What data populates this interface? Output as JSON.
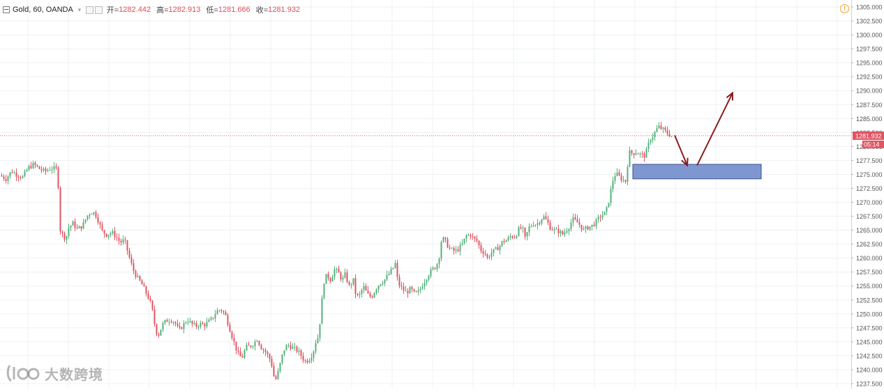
{
  "legend": {
    "symbol": "Gold, 60, OANDA",
    "open_label": "开=",
    "open_value": "1282.442",
    "high_label": "高=",
    "high_value": "1282.913",
    "low_label": "低=",
    "low_value": "1281.666",
    "close_label": "收=",
    "close_value": "1281.932"
  },
  "watermark": {
    "text": "大数跨境"
  },
  "colors": {
    "up": "#54b07a",
    "down": "#e05562",
    "price_line": "#e05562",
    "arrow": "#8b1a1a",
    "zone_fill": "#7f97d1",
    "zone_stroke": "#3a4f8c",
    "grid": "#eef0f3",
    "axis_text": "#555555"
  },
  "chart_data": {
    "type": "candlestick",
    "symbol": "Gold",
    "interval": "60",
    "source": "OANDA",
    "ylim": [
      1237.5,
      1305.0
    ],
    "y_ticks": [
      "1305.000",
      "1302.500",
      "1300.000",
      "1297.500",
      "1295.000",
      "1292.500",
      "1290.000",
      "1287.500",
      "1285.000",
      "1282.500",
      "1280.000",
      "1277.500",
      "1275.000",
      "1272.500",
      "1270.000",
      "1267.500",
      "1265.000",
      "1262.500",
      "1260.000",
      "1257.500",
      "1255.000",
      "1252.500",
      "1250.000",
      "1247.500",
      "1245.000",
      "1242.500",
      "1240.000",
      "1237.500"
    ],
    "last_price": "1281.932",
    "countdown": "05:14",
    "grid": true,
    "close_path": [
      [
        0,
        1274.8
      ],
      [
        8,
        1274.2
      ],
      [
        16,
        1275.6
      ],
      [
        24,
        1274.9
      ],
      [
        32,
        1274.5
      ],
      [
        40,
        1276.2
      ],
      [
        48,
        1276.8
      ],
      [
        56,
        1276.0
      ],
      [
        64,
        1275.5
      ],
      [
        72,
        1276.1
      ],
      [
        80,
        1276.0
      ],
      [
        84,
        1272.0
      ],
      [
        86,
        1265.0
      ],
      [
        90,
        1264.0
      ],
      [
        94,
        1263.5
      ],
      [
        98,
        1265.5
      ],
      [
        104,
        1266.2
      ],
      [
        110,
        1265.2
      ],
      [
        118,
        1265.8
      ],
      [
        124,
        1267.5
      ],
      [
        130,
        1268.3
      ],
      [
        136,
        1268.0
      ],
      [
        140,
        1266.8
      ],
      [
        146,
        1264.8
      ],
      [
        152,
        1264.2
      ],
      [
        160,
        1264.6
      ],
      [
        166,
        1263.8
      ],
      [
        172,
        1262.8
      ],
      [
        178,
        1263.2
      ],
      [
        184,
        1260.5
      ],
      [
        190,
        1258.0
      ],
      [
        196,
        1256.5
      ],
      [
        202,
        1255.5
      ],
      [
        208,
        1254.0
      ],
      [
        214,
        1252.5
      ],
      [
        218,
        1250.5
      ],
      [
        222,
        1247.5
      ],
      [
        226,
        1246.0
      ],
      [
        232,
        1248.0
      ],
      [
        238,
        1248.8
      ],
      [
        244,
        1249.0
      ],
      [
        250,
        1248.5
      ],
      [
        256,
        1247.0
      ],
      [
        262,
        1248.0
      ],
      [
        268,
        1249.0
      ],
      [
        274,
        1248.2
      ],
      [
        280,
        1247.8
      ],
      [
        286,
        1248.2
      ],
      [
        292,
        1248.0
      ],
      [
        298,
        1248.5
      ],
      [
        304,
        1249.2
      ],
      [
        310,
        1250.5
      ],
      [
        316,
        1250.8
      ],
      [
        322,
        1250.0
      ],
      [
        326,
        1248.5
      ],
      [
        330,
        1246.8
      ],
      [
        336,
        1244.5
      ],
      [
        340,
        1243.0
      ],
      [
        346,
        1242.0
      ],
      [
        352,
        1244.0
      ],
      [
        358,
        1244.2
      ],
      [
        364,
        1244.8
      ],
      [
        368,
        1245.5
      ],
      [
        374,
        1244.0
      ],
      [
        380,
        1243.2
      ],
      [
        386,
        1242.0
      ],
      [
        390,
        1240.5
      ],
      [
        393,
        1238.0
      ],
      [
        396,
        1238.5
      ],
      [
        400,
        1240.5
      ],
      [
        406,
        1243.5
      ],
      [
        412,
        1244.5
      ],
      [
        418,
        1244.0
      ],
      [
        424,
        1243.6
      ],
      [
        430,
        1242.8
      ],
      [
        436,
        1241.5
      ],
      [
        442,
        1241.8
      ],
      [
        448,
        1243.0
      ],
      [
        452,
        1245.0
      ],
      [
        456,
        1246.0
      ],
      [
        460,
        1251.0
      ],
      [
        463,
        1255.5
      ],
      [
        468,
        1257.0
      ],
      [
        474,
        1256.0
      ],
      [
        478,
        1258.0
      ],
      [
        484,
        1257.5
      ],
      [
        490,
        1256.0
      ],
      [
        494,
        1257.0
      ],
      [
        500,
        1255.0
      ],
      [
        506,
        1256.0
      ],
      [
        510,
        1253.0
      ],
      [
        516,
        1253.5
      ],
      [
        520,
        1255.0
      ],
      [
        526,
        1253.5
      ],
      [
        532,
        1253.0
      ],
      [
        538,
        1254.5
      ],
      [
        544,
        1255.5
      ],
      [
        550,
        1256.0
      ],
      [
        556,
        1257.0
      ],
      [
        562,
        1258.0
      ],
      [
        566,
        1259.0
      ],
      [
        570,
        1255.5
      ],
      [
        576,
        1254.5
      ],
      [
        582,
        1253.8
      ],
      [
        588,
        1254.5
      ],
      [
        594,
        1253.5
      ],
      [
        600,
        1254.0
      ],
      [
        606,
        1255.5
      ],
      [
        612,
        1256.8
      ],
      [
        618,
        1257.8
      ],
      [
        624,
        1258.5
      ],
      [
        628,
        1259.5
      ],
      [
        632,
        1263.0
      ],
      [
        636,
        1263.5
      ],
      [
        642,
        1262.0
      ],
      [
        646,
        1261.5
      ],
      [
        652,
        1261.2
      ],
      [
        658,
        1261.8
      ],
      [
        662,
        1262.5
      ],
      [
        668,
        1264.0
      ],
      [
        674,
        1264.2
      ],
      [
        678,
        1263.5
      ],
      [
        684,
        1263.0
      ],
      [
        688,
        1261.5
      ],
      [
        694,
        1261.0
      ],
      [
        698,
        1260.0
      ],
      [
        704,
        1261.0
      ],
      [
        710,
        1261.5
      ],
      [
        716,
        1262.2
      ],
      [
        720,
        1263.0
      ],
      [
        726,
        1263.2
      ],
      [
        732,
        1264.0
      ],
      [
        738,
        1263.8
      ],
      [
        742,
        1265.0
      ],
      [
        748,
        1265.5
      ],
      [
        752,
        1263.5
      ],
      [
        758,
        1265.5
      ],
      [
        764,
        1266.2
      ],
      [
        768,
        1266.0
      ],
      [
        774,
        1266.8
      ],
      [
        778,
        1267.5
      ],
      [
        784,
        1266.5
      ],
      [
        788,
        1265.5
      ],
      [
        794,
        1265.0
      ],
      [
        800,
        1264.8
      ],
      [
        806,
        1264.3
      ],
      [
        810,
        1264.8
      ],
      [
        816,
        1265.8
      ],
      [
        820,
        1267.0
      ],
      [
        826,
        1266.5
      ],
      [
        830,
        1266.0
      ],
      [
        836,
        1265.0
      ],
      [
        842,
        1265.5
      ],
      [
        848,
        1265.8
      ],
      [
        854,
        1266.5
      ],
      [
        860,
        1267.5
      ],
      [
        866,
        1268.0
      ],
      [
        870,
        1269.0
      ],
      [
        874,
        1271.5
      ],
      [
        878,
        1274.0
      ],
      [
        882,
        1275.2
      ],
      [
        888,
        1274.5
      ],
      [
        892,
        1274.0
      ],
      [
        896,
        1273.8
      ],
      [
        898,
        1274.5
      ],
      [
        900,
        1279.0
      ],
      [
        906,
        1278.8
      ],
      [
        912,
        1279.0
      ],
      [
        918,
        1278.5
      ],
      [
        924,
        1278.3
      ],
      [
        928,
        1280.0
      ],
      [
        932,
        1281.5
      ],
      [
        936,
        1282.0
      ],
      [
        940,
        1283.0
      ],
      [
        944,
        1283.5
      ],
      [
        950,
        1283.0
      ],
      [
        956,
        1282.4
      ],
      [
        962,
        1281.932
      ]
    ],
    "annotations": {
      "support_zone": {
        "price_top": 1276.8,
        "price_bottom": 1274.2
      },
      "arrow_down": {
        "from_price": 1282.0,
        "to_price": 1276.6
      },
      "arrow_up": {
        "from_price": 1276.6,
        "to_price": 1289.6
      }
    }
  }
}
